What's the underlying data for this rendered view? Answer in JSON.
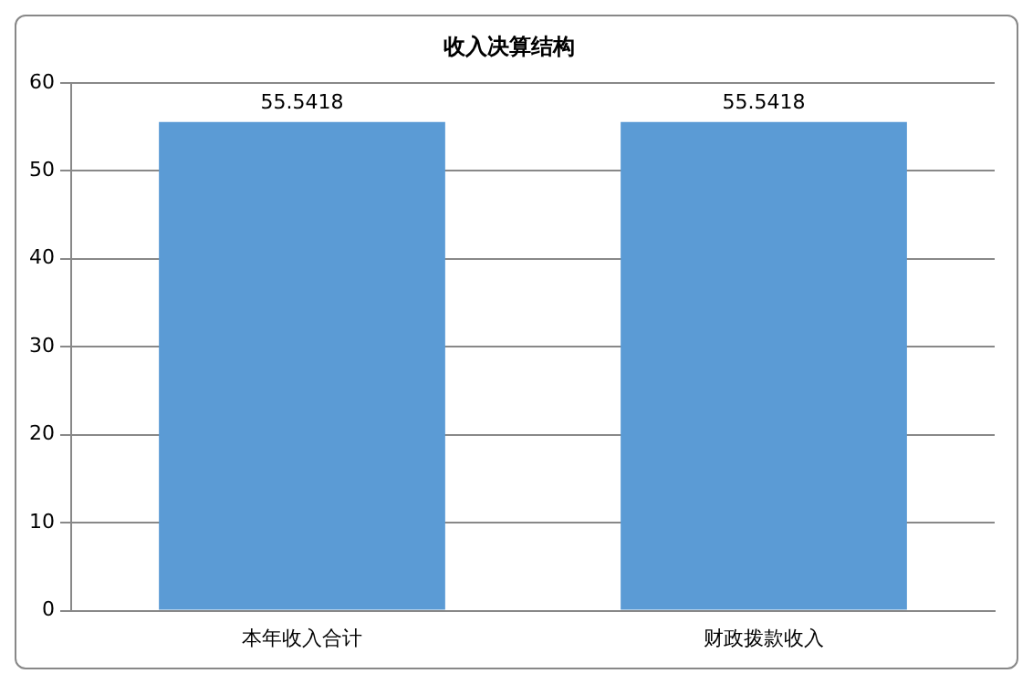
{
  "chart_data": {
    "type": "bar",
    "title": "收入决算结构",
    "categories": [
      "本年收入合计",
      "财政拨款收入"
    ],
    "values": [
      55.5418,
      55.5418
    ],
    "color": "#5b9bd5",
    "ylim": [
      0,
      60
    ],
    "yticks": [
      0,
      10,
      20,
      30,
      40,
      50,
      60
    ],
    "grid": "y",
    "data_labels": true
  }
}
